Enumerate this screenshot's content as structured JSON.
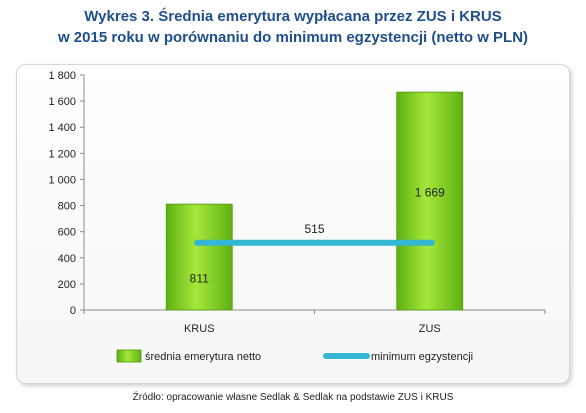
{
  "title_line1": "Wykres 3. Średnia emerytura wypłacana przez ZUS i KRUS",
  "title_line2": "w 2015 roku w porównaniu do minimum egzystencji (netto w PLN)",
  "source": "Źródło: opracowanie własne Sedlak & Sedlak na podstawie ZUS i KRUS",
  "colors": {
    "bar": "#7ccc1a",
    "bar_dark": "#4c9a0a",
    "line": "#33b7d3",
    "title": "#1f4e8c"
  },
  "chart_data": {
    "type": "bar",
    "categories": [
      "KRUS",
      "ZUS"
    ],
    "series": [
      {
        "name": "średnia emerytura netto",
        "type": "bar",
        "values": [
          811,
          1669
        ],
        "labels": [
          "811",
          "1 669"
        ]
      },
      {
        "name": "minimum egzystencji",
        "type": "line",
        "values": [
          515,
          515
        ],
        "label": "515"
      }
    ],
    "ylim": [
      0,
      1800
    ],
    "yticks": [
      0,
      200,
      400,
      600,
      800,
      1000,
      1200,
      1400,
      1600,
      1800
    ],
    "ytick_labels": [
      "0",
      "200",
      "400",
      "600",
      "800",
      "1 000",
      "1 200",
      "1 400",
      "1 600",
      "1 800"
    ],
    "xlabel": "",
    "ylabel": "",
    "grid": false,
    "legend_position": "bottom"
  }
}
